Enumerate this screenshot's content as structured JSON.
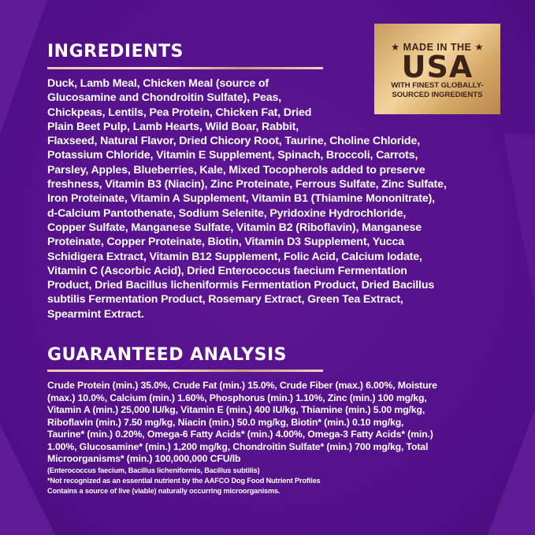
{
  "ingredients": {
    "title": "INGREDIENTS",
    "lines": [
      "Duck, Lamb Meal, Chicken Meal (source of",
      "Glucosamine and Chondroitin Sulfate), Peas,",
      "Chickpeas, Lentils, Pea Protein, Chicken Fat, Dried",
      "Plain Beet Pulp, Lamb Hearts, Wild Boar, Rabbit,",
      "Flaxseed, Natural Flavor, Dried Chicory Root, Taurine, Choline Chloride,",
      "Potassium Chloride, Vitamin E Supplement, Spinach, Broccoli, Carrots,",
      "Parsley, Apples, Blueberries, Kale, Mixed Tocopherols added to preserve",
      "freshness, Vitamin B3 (Niacin), Zinc Proteinate, Ferrous Sulfate, Zinc Sulfate,",
      "Iron Proteinate, Vitamin A Supplement, Vitamin B1 (Thiamine Mononitrate),",
      "d-Calcium Pantothenate, Sodium Selenite, Pyridoxine Hydrochloride,",
      "Copper Sulfate, Manganese Sulfate, Vitamin B2 (Riboflavin), Manganese",
      "Proteinate, Copper Proteinate, Biotin, Vitamin D3 Supplement, Yucca",
      "Schidigera Extract, Vitamin B12 Supplement, Folic Acid, Calcium Iodate,",
      "Vitamin C (Ascorbic Acid), Dried Enterococcus faecium Fermentation",
      "Product, Dried Bacillus licheniformis Fermentation Product, Dried Bacillus",
      "subtilis Fermentation Product, Rosemary Extract, Green Tea Extract,",
      "Spearmint Extract."
    ]
  },
  "analysis": {
    "title": "GUARANTEED ANALYSIS",
    "lines": [
      "Crude Protein (min.) 35.0%, Crude Fat (min.) 15.0%, Crude Fiber (max.) 6.00%, Moisture",
      "(max.) 10.0%, Calcium (min.) 1.60%, Phosphorus (min.) 1.10%, Zinc (min.) 100 mg/kg,",
      "Vitamin A (min.) 25,000 IU/kg, Vitamin E (min.) 400 IU/kg, Thiamine (min.) 5.00 mg/kg,",
      "Riboflavin (min.) 7.50 mg/kg, Niacin (min.) 50.0 mg/kg, Biotin* (min.) 0.10 mg/kg,",
      "Taurine* (min.) 0.20%, Omega-6 Fatty Acids* (min.) 4.00%, Omega-3 Fatty Acids* (min.)",
      "1.00%, Glucosamine* (min.) 1,200 mg/kg, Chondroitin Sulfate* (min.) 700 mg/kg, Total",
      "Microorganisms* (min.) 100,000,000 CFU/lb"
    ],
    "notes": [
      "(Enterococcus faecium, Bacillus licheniformis, Bacillus subtilis)",
      "*Not recognized as an essential nutrient by the AAFCO Dog Food Nutrient Profiles",
      "Contains a source of live (viable) naturally occurring microorganisms."
    ]
  },
  "badge": {
    "line1": "★ MADE IN THE ★",
    "line2": "USA",
    "line3": "WITH FINEST GLOBALLY-",
    "line4": "SOURCED INGREDIENTS"
  },
  "colors": {
    "background": "#56118c",
    "gold": "#e0b77a",
    "text": "#ffffff"
  }
}
